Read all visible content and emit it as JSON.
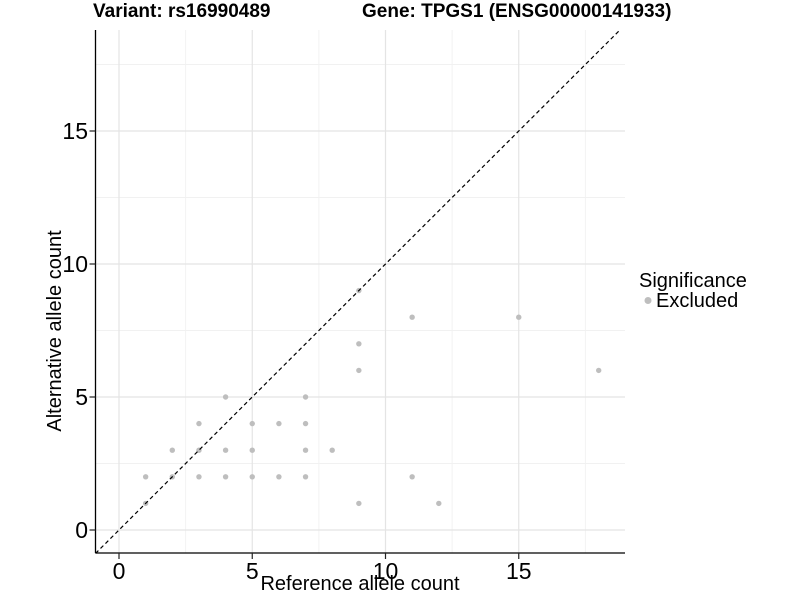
{
  "titles": {
    "left": "Variant: rs16990489",
    "right": "Gene: TPGS1 (ENSG00000141933)"
  },
  "axes": {
    "x": {
      "label": "Reference allele count"
    },
    "y": {
      "label": "Alternative allele count"
    }
  },
  "legend": {
    "title": "Significance",
    "items": [
      {
        "label": "Excluded",
        "color": "#bebebe",
        "marker": "circle-icon"
      }
    ]
  },
  "chart_data": {
    "type": "scatter",
    "title_left": "Variant: rs16990489",
    "title_right": "Gene: TPGS1 (ENSG00000141933)",
    "xlabel": "Reference allele count",
    "ylabel": "Alternative allele count",
    "xlim": [
      -0.92,
      19.0
    ],
    "ylim": [
      -0.88,
      18.85
    ],
    "x_ticks": [
      0,
      5,
      10,
      15
    ],
    "y_ticks": [
      0,
      5,
      10,
      15
    ],
    "x_minor_ticks": [
      2.5,
      7.5,
      12.5,
      17.5
    ],
    "y_minor_ticks": [
      2.5,
      7.5,
      12.5,
      17.5
    ],
    "grid": "major and minor gridlines, light gray on white panel",
    "legend_position": "right",
    "reference_line": {
      "type": "identity",
      "slope": 1,
      "intercept": 0,
      "style": "dashed",
      "color": "#000000"
    },
    "series": [
      {
        "name": "Excluded",
        "color": "#bebebe",
        "points": [
          [
            1,
            1
          ],
          [
            9,
            1
          ],
          [
            12,
            1
          ],
          [
            1,
            2
          ],
          [
            2,
            2
          ],
          [
            3,
            2
          ],
          [
            4,
            2
          ],
          [
            5,
            2
          ],
          [
            6,
            2
          ],
          [
            7,
            2
          ],
          [
            11,
            2
          ],
          [
            2,
            3
          ],
          [
            3,
            3
          ],
          [
            4,
            3
          ],
          [
            5,
            3
          ],
          [
            7,
            3
          ],
          [
            8,
            3
          ],
          [
            3,
            4
          ],
          [
            5,
            4
          ],
          [
            6,
            4
          ],
          [
            7,
            4
          ],
          [
            4,
            5
          ],
          [
            7,
            5
          ],
          [
            9,
            6
          ],
          [
            18,
            6
          ],
          [
            9,
            7
          ],
          [
            11,
            8
          ],
          [
            15,
            8
          ],
          [
            9,
            9
          ]
        ]
      }
    ]
  },
  "colors": {
    "point": "#bebebe",
    "grid_major": "#e4e4e4",
    "grid_minor": "#f1f1f1",
    "axis": "#000000",
    "text": "#000000",
    "background": "#ffffff"
  }
}
